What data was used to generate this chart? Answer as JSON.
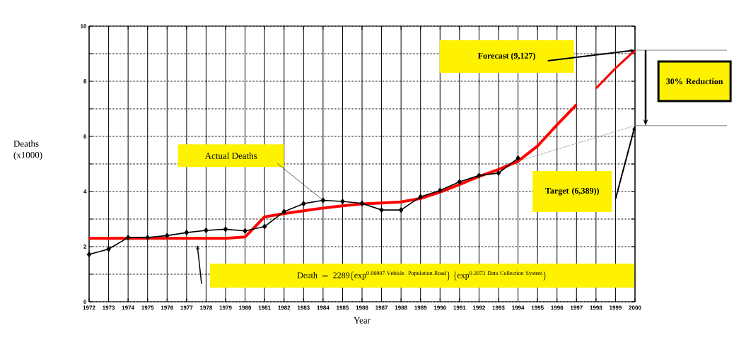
{
  "chart_data": {
    "type": "line",
    "xlabel": "Year",
    "ylabel": "Deaths (x1000)",
    "xlim": [
      1972,
      2000
    ],
    "ylim": [
      0,
      10
    ],
    "xticks": [
      1972,
      1973,
      1974,
      1975,
      1976,
      1977,
      1978,
      1979,
      1980,
      1981,
      1982,
      1983,
      1984,
      1985,
      1986,
      1987,
      1988,
      1989,
      1990,
      1991,
      1992,
      1993,
      1994,
      1995,
      1996,
      1997,
      1998,
      1999,
      2000
    ],
    "yticks": [
      0,
      {
        "value": 1,
        "label": null
      },
      2,
      {
        "value": 3,
        "label": null
      },
      4,
      {
        "value": 5,
        "label": null
      },
      6,
      {
        "value": 7,
        "label": null
      },
      8,
      {
        "value": 9,
        "label": null
      },
      10
    ],
    "grid": true,
    "series": [
      {
        "color": "#ff0000",
        "marker": "none",
        "line_style": "solid",
        "x": [
          1972,
          1973,
          1974,
          1975,
          1976,
          1977,
          1978,
          1979,
          1980,
          1981,
          1982,
          1983,
          1984,
          1985,
          1986,
          1987,
          1988,
          1989,
          1990,
          1991,
          1992,
          1993,
          1994,
          1995,
          1996,
          1997
        ],
        "values": [
          2.3,
          2.3,
          2.3,
          2.3,
          2.3,
          2.3,
          2.3,
          2.3,
          2.35,
          3.08,
          3.2,
          3.3,
          3.4,
          3.48,
          3.55,
          3.58,
          3.62,
          3.75,
          3.98,
          4.25,
          4.55,
          4.8,
          5.1,
          5.65,
          6.42,
          7.15
        ]
      },
      {
        "color": "#ff0000",
        "marker": "none",
        "line_style": "solid",
        "x": [
          1998,
          1999,
          2000
        ],
        "values": [
          7.74,
          8.47,
          9.127
        ]
      },
      {
        "color": "#808080",
        "marker": "none",
        "line_style": "dotted",
        "x": [
          1994,
          2000
        ],
        "values": [
          5.1,
          6.389
        ]
      },
      {
        "color": "#000000",
        "marker": "diamond",
        "line_style": "solid",
        "x": [
          1972,
          1973,
          1974,
          1975,
          1976,
          1977,
          1978,
          1979,
          1980,
          1981,
          1982,
          1983,
          1984,
          1985,
          1986,
          1987,
          1988,
          1989,
          1990,
          1991,
          1992,
          1993,
          1994
        ],
        "values": [
          1.72,
          1.91,
          2.33,
          2.33,
          2.4,
          2.51,
          2.59,
          2.63,
          2.57,
          2.73,
          3.27,
          3.56,
          3.68,
          3.64,
          3.57,
          3.33,
          3.33,
          3.81,
          4.04,
          4.35,
          4.58,
          4.67,
          5.21
        ]
      }
    ],
    "annotations": [
      "Forecast  (9,127)",
      "Target (6,389))",
      "30% Reduction",
      "\\mathrm{Death\\ =\\ 2289\\{exp^{0.00007.Vehicle.\\ Population.Road}\\}\\ \\{exp^{0.2073\\ Data\\ Collection\\ System}\\}}",
      "Actual Deaths"
    ]
  }
}
